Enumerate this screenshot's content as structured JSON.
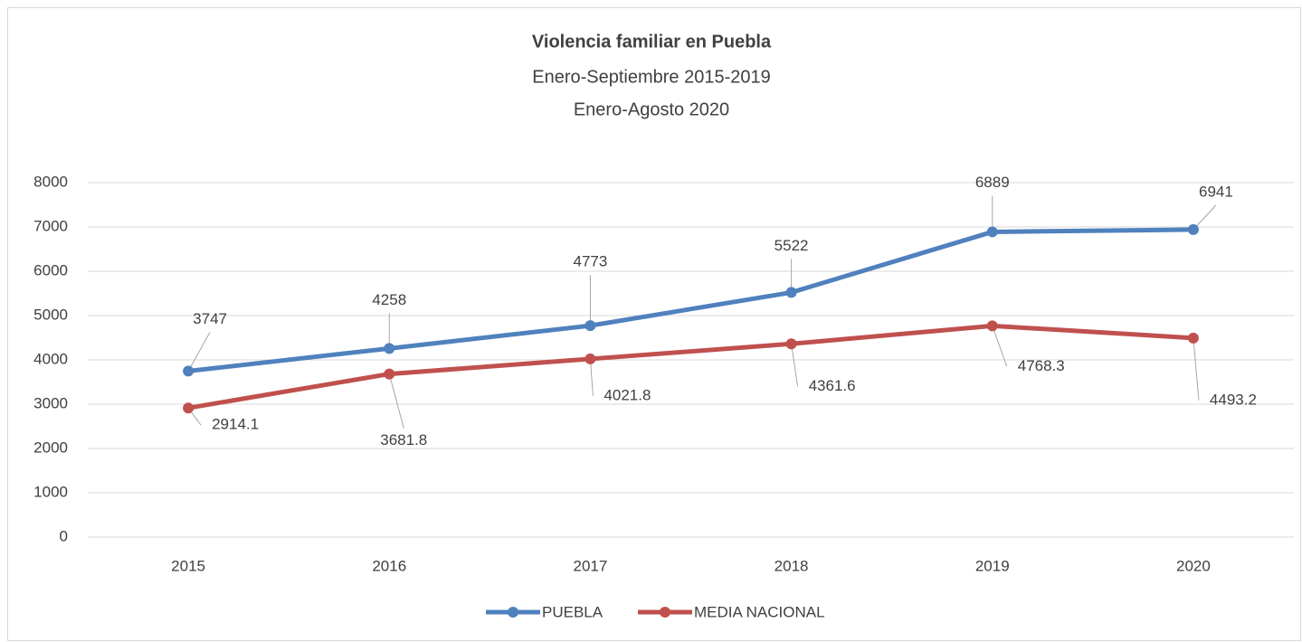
{
  "chart_data": {
    "type": "line",
    "title": "Violencia familiar en Puebla",
    "subtitle": [
      "Enero-Septiembre 2015-2019",
      "Enero-Agosto 2020"
    ],
    "categories": [
      "2015",
      "2016",
      "2017",
      "2018",
      "2019",
      "2020"
    ],
    "series": [
      {
        "name": "PUEBLA",
        "color": "#4f81bd",
        "values": [
          3747,
          4258,
          4773,
          5522,
          6889,
          6941
        ]
      },
      {
        "name": "MEDIA NACIONAL",
        "color": "#c0504d",
        "values": [
          2914.1,
          3681.8,
          4021.8,
          4361.6,
          4768.3,
          4493.2
        ]
      }
    ],
    "ylim": [
      0,
      8000
    ],
    "yticks": [
      0,
      1000,
      2000,
      3000,
      4000,
      5000,
      6000,
      7000,
      8000
    ],
    "grid": true,
    "legend": "bottom"
  }
}
